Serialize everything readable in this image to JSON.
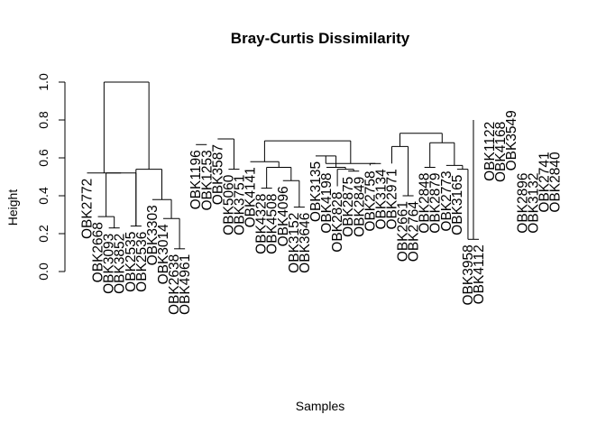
{
  "chart_data": {
    "type": "dendrogram",
    "title": "Bray-Curtis Dissimilarity",
    "xlabel": "Samples",
    "ylabel": "Height",
    "ylim": [
      0,
      1
    ],
    "yticks": [
      0.0,
      0.2,
      0.4,
      0.6,
      0.8,
      1.0
    ],
    "ytick_labels": [
      "0.0",
      "0.2",
      "0.4",
      "0.6",
      "0.8",
      "1.0"
    ],
    "leaves": [
      {
        "label": "OBK2772",
        "h": 0.52
      },
      {
        "label": "OBK2668",
        "h": 0.29
      },
      {
        "label": "OBK3093",
        "h": 0.23
      },
      {
        "label": "OBK3852",
        "h": 0.23
      },
      {
        "label": "OBK2535",
        "h": 0.24
      },
      {
        "label": "OBK2536",
        "h": 0.24
      },
      {
        "label": "OBK3303",
        "h": 0.38
      },
      {
        "label": "OBK3014",
        "h": 0.28
      },
      {
        "label": "OBK2638",
        "h": 0.12
      },
      {
        "label": "OBK4961",
        "h": 0.12
      },
      {
        "label": "OBK1196",
        "h": 0.67
      },
      {
        "label": "OBK1253",
        "h": 0.67
      },
      {
        "label": "OBK3587",
        "h": 0.7
      },
      {
        "label": "OBK5060",
        "h": 0.54
      },
      {
        "label": "OBK3751",
        "h": 0.54
      },
      {
        "label": "OBK4141",
        "h": 0.58
      },
      {
        "label": "OBK4328",
        "h": 0.44
      },
      {
        "label": "OBK4508",
        "h": 0.44
      },
      {
        "label": "OBK4096",
        "h": 0.48
      },
      {
        "label": "OBK3152",
        "h": 0.34
      },
      {
        "label": "OBK3646",
        "h": 0.34
      },
      {
        "label": "OBK3135",
        "h": 0.61
      },
      {
        "label": "OBK4198",
        "h": 0.55
      },
      {
        "label": "OBK2828",
        "h": 0.45
      },
      {
        "label": "OBK2875",
        "h": 0.53
      },
      {
        "label": "OBK2849",
        "h": 0.53
      },
      {
        "label": "OBK2758",
        "h": 0.56
      },
      {
        "label": "OBK3134",
        "h": 0.57
      },
      {
        "label": "OBK2971",
        "h": 0.57
      },
      {
        "label": "OBK2661",
        "h": 0.4
      },
      {
        "label": "OBK2764",
        "h": 0.4
      },
      {
        "label": "OBK2848",
        "h": 0.55
      },
      {
        "label": "OBK2879",
        "h": 0.55
      },
      {
        "label": "OBK2773",
        "h": 0.56
      },
      {
        "label": "OBK3165",
        "h": 0.54
      },
      {
        "label": "OBK3958",
        "h": 0.17
      },
      {
        "label": "OBK4112",
        "h": 0.17
      },
      {
        "label": "OBK1122",
        "h": 0.82
      },
      {
        "label": "OBK4168",
        "h": 0.82
      },
      {
        "label": "OBK3549",
        "h": 0.88
      },
      {
        "label": "OBK2896",
        "h": 0.55
      },
      {
        "label": "OBK3132",
        "h": 0.55
      },
      {
        "label": "OBK2741",
        "h": 0.66
      },
      {
        "label": "OBK2840",
        "h": 0.66
      }
    ],
    "merges": [
      [
        -3,
        -4,
        0.23
      ],
      [
        -2,
        1,
        0.29
      ],
      [
        -5,
        -6,
        0.24
      ],
      [
        2,
        3,
        0.52
      ],
      [
        -1,
        4,
        0.52
      ],
      [
        -9,
        -10,
        0.12
      ],
      [
        -8,
        6,
        0.28
      ],
      [
        -7,
        7,
        0.38
      ],
      [
        8,
        3,
        0.54
      ],
      [
        5,
        9,
        1.0
      ],
      [
        -11,
        -12,
        0.67
      ],
      [
        -14,
        -15,
        0.54
      ],
      [
        -13,
        12,
        0.7
      ],
      [
        -17,
        -18,
        0.44
      ],
      [
        -20,
        -21,
        0.34
      ],
      [
        -19,
        15,
        0.48
      ],
      [
        14,
        16,
        0.55
      ],
      [
        -16,
        17,
        0.58
      ],
      [
        -25,
        -26,
        0.53
      ],
      [
        -24,
        19,
        0.54
      ],
      [
        -23,
        20,
        0.55
      ],
      [
        -22,
        21,
        0.61
      ],
      [
        -27,
        -28,
        0.57
      ],
      [
        22,
        23,
        0.57
      ],
      [
        18,
        24,
        0.69
      ],
      [
        -30,
        -31,
        0.4
      ],
      [
        -29,
        26,
        0.66
      ],
      [
        -32,
        -33,
        0.55
      ],
      [
        -35,
        -36,
        0.54
      ],
      [
        -34,
        29,
        0.56
      ],
      [
        28,
        30,
        0.68
      ],
      [
        27,
        31,
        0.73
      ],
      [
        -36,
        -37,
        0.17
      ],
      [
        33,
        34,
        0.54
      ],
      [
        33,
        34,
        0.8
      ]
    ]
  }
}
